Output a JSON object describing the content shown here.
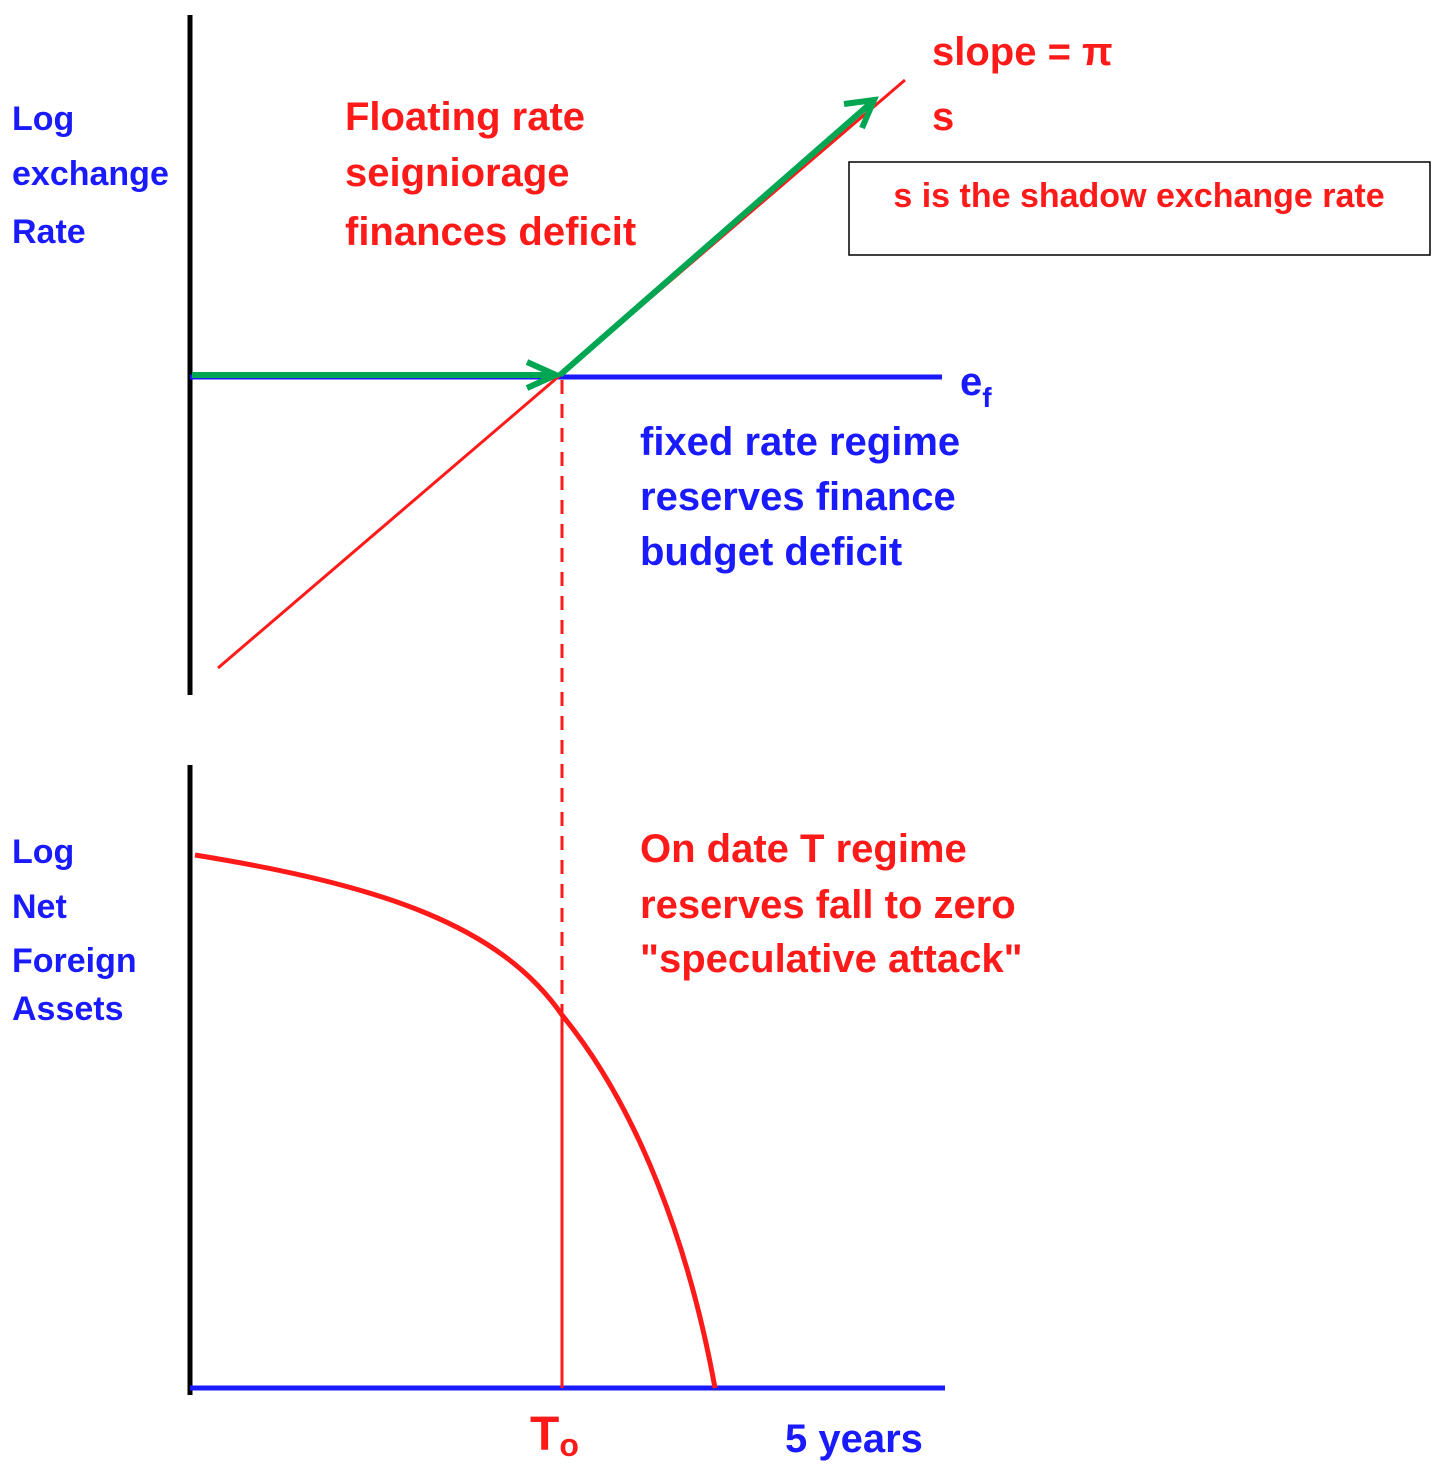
{
  "top_panel": {
    "y_axis_label": [
      "Log",
      "exchange",
      "Rate"
    ],
    "floating_label": [
      "Floating rate",
      "seigniorage",
      "finances deficit"
    ],
    "slope_label": "slope = π",
    "shadow_rate_label": "s",
    "shadow_note": "s is the shadow exchange rate",
    "fixed_rate_label": {
      "main": "e",
      "subscript": "f"
    },
    "fixed_note": [
      "fixed rate regime",
      "reserves finance",
      "budget deficit"
    ]
  },
  "bottom_panel": {
    "y_axis_label": [
      "Log",
      "Net",
      "Foreign",
      "Assets"
    ],
    "attack_note": [
      "On date T regime",
      "reserves fall to zero",
      "\"speculative attack\""
    ],
    "t_label": {
      "main": "T",
      "subscript": "o"
    },
    "x_end_label": "5 years"
  }
}
